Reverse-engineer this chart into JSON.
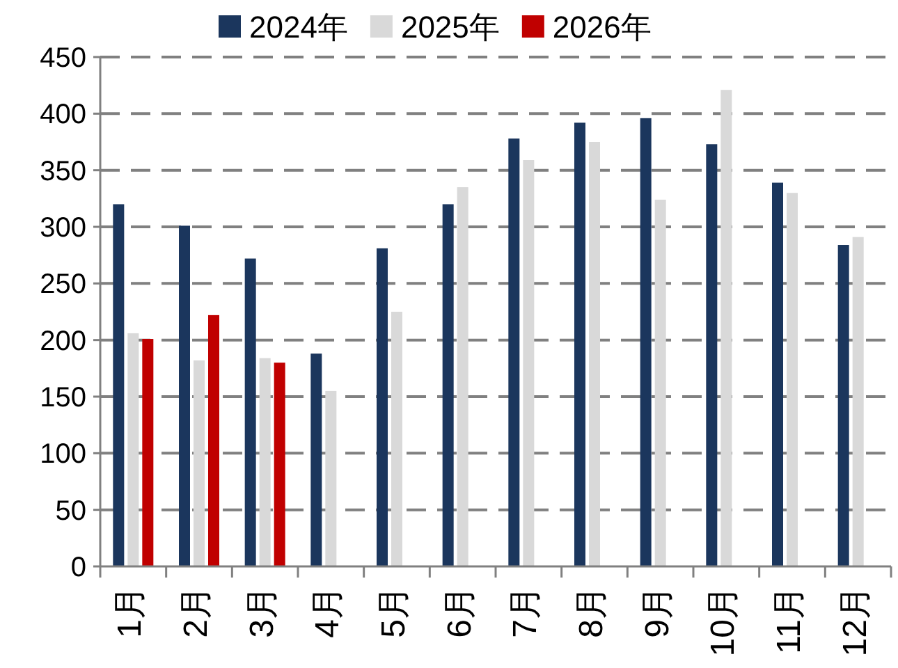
{
  "chart_data": {
    "type": "bar",
    "categories": [
      "1月",
      "2月",
      "3月",
      "4月",
      "5月",
      "6月",
      "7月",
      "8月",
      "9月",
      "10月",
      "11月",
      "12月"
    ],
    "series": [
      {
        "name": "2024年",
        "color": "#1b365d",
        "values": [
          320,
          301,
          272,
          188,
          281,
          320,
          378,
          392,
          396,
          373,
          339,
          284
        ]
      },
      {
        "name": "2025年",
        "color": "#d9d9d9",
        "values": [
          206,
          182,
          184,
          155,
          225,
          335,
          359,
          375,
          324,
          421,
          330,
          291
        ]
      },
      {
        "name": "2026年",
        "color": "#c00000",
        "values": [
          201,
          222,
          180,
          null,
          null,
          null,
          null,
          null,
          null,
          null,
          null,
          null
        ]
      }
    ],
    "ylim": [
      0,
      450
    ],
    "yticks": [
      0,
      50,
      100,
      150,
      200,
      250,
      300,
      350,
      400,
      450
    ],
    "grid": "y",
    "legend": "top"
  }
}
